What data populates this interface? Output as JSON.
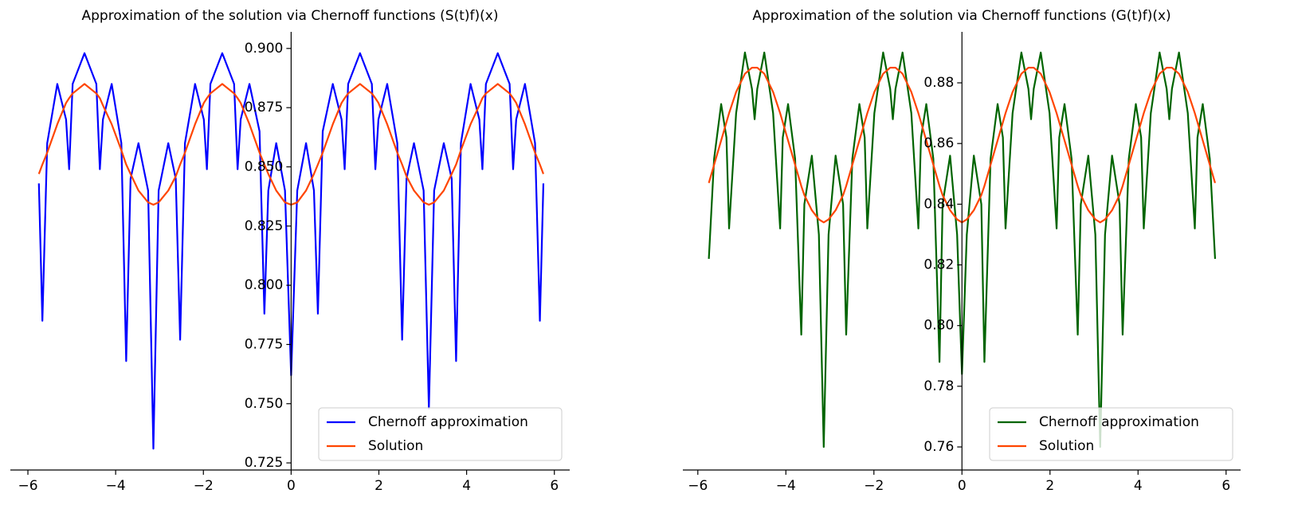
{
  "chart_data": [
    {
      "type": "line",
      "title": "Approximation of the solution via Chernoff functions (S(t)f)(x)",
      "x": [
        -5.75,
        -5.67,
        -5.56,
        -5.33,
        -5.13,
        -5.06,
        -4.98,
        -4.71,
        -4.44,
        -4.36,
        -4.29,
        -4.09,
        -3.87,
        -3.76,
        -3.66,
        -3.48,
        -3.26,
        -3.14,
        -3.02,
        -2.8,
        -2.63,
        -2.53,
        -2.42,
        -2.19,
        -1.99,
        -1.92,
        -1.84,
        -1.57,
        -1.3,
        -1.22,
        -1.15,
        -0.95,
        -0.72,
        -0.61,
        -0.52,
        -0.34,
        -0.14,
        0,
        0.14,
        0.34,
        0.52,
        0.61,
        0.72,
        0.95,
        1.15,
        1.22,
        1.3,
        1.57,
        1.84,
        1.92,
        1.99,
        2.19,
        2.42,
        2.53,
        2.63,
        2.8,
        3.02,
        3.14,
        3.26,
        3.48,
        3.66,
        3.76,
        3.87,
        4.09,
        4.29,
        4.36,
        4.44,
        4.71,
        4.98,
        5.06,
        5.13,
        5.33,
        5.56,
        5.67,
        5.75
      ],
      "series": [
        {
          "name": "Chernoff approximation",
          "color": "#0000ff",
          "values": [
            0.843,
            0.785,
            0.86,
            0.885,
            0.87,
            0.849,
            0.885,
            0.898,
            0.885,
            0.849,
            0.87,
            0.885,
            0.86,
            0.768,
            0.845,
            0.86,
            0.84,
            0.731,
            0.84,
            0.86,
            0.845,
            0.777,
            0.86,
            0.885,
            0.87,
            0.849,
            0.885,
            0.898,
            0.885,
            0.849,
            0.87,
            0.885,
            0.865,
            0.788,
            0.84,
            0.86,
            0.84,
            0.762,
            0.84,
            0.86,
            0.84,
            0.788,
            0.865,
            0.885,
            0.87,
            0.849,
            0.885,
            0.898,
            0.885,
            0.849,
            0.87,
            0.885,
            0.86,
            0.777,
            0.845,
            0.86,
            0.84,
            0.748,
            0.84,
            0.86,
            0.845,
            0.768,
            0.86,
            0.885,
            0.87,
            0.849,
            0.885,
            0.898,
            0.885,
            0.849,
            0.87,
            0.885,
            0.86,
            0.785,
            0.843
          ]
        },
        {
          "name": "Solution",
          "color": "#ff4500",
          "values": [
            0.847,
            0.851,
            0.856,
            0.868,
            0.877,
            0.879,
            0.881,
            0.885,
            0.881,
            0.879,
            0.876,
            0.868,
            0.857,
            0.851,
            0.847,
            0.84,
            0.835,
            0.834,
            0.835,
            0.84,
            0.846,
            0.851,
            0.856,
            0.868,
            0.877,
            0.879,
            0.881,
            0.885,
            0.881,
            0.879,
            0.877,
            0.868,
            0.856,
            0.851,
            0.847,
            0.84,
            0.835,
            0.834,
            0.835,
            0.84,
            0.847,
            0.851,
            0.856,
            0.868,
            0.877,
            0.879,
            0.881,
            0.885,
            0.881,
            0.879,
            0.877,
            0.868,
            0.856,
            0.851,
            0.846,
            0.84,
            0.835,
            0.834,
            0.835,
            0.84,
            0.847,
            0.851,
            0.857,
            0.868,
            0.876,
            0.879,
            0.881,
            0.885,
            0.881,
            0.879,
            0.877,
            0.868,
            0.856,
            0.851,
            0.847
          ]
        }
      ],
      "xlim": [
        -6.4,
        6.35
      ],
      "xticks": [
        {
          "value": -6,
          "label": "−6"
        },
        {
          "value": -4,
          "label": "−4"
        },
        {
          "value": -2,
          "label": "−2"
        },
        0,
        2,
        4,
        6
      ],
      "ylim": [
        0.722,
        0.907
      ],
      "yticks": [
        0.725,
        {
          "value": 0.75,
          "label": "0.750"
        },
        0.775,
        {
          "value": 0.8,
          "label": "0.800"
        },
        0.825,
        {
          "value": 0.85,
          "label": "0.850"
        },
        0.875,
        {
          "value": 0.9,
          "label": "0.900"
        }
      ],
      "legend": "lower right"
    },
    {
      "type": "line",
      "title": "Approximation of the solution via Chernoff functions (G(t)f)(x)",
      "x": [
        -5.75,
        -5.63,
        -5.47,
        -5.35,
        -5.29,
        -5.13,
        -4.93,
        -4.77,
        -4.71,
        -4.65,
        -4.49,
        -4.29,
        -4.13,
        -4.07,
        -3.95,
        -3.79,
        -3.65,
        -3.58,
        -3.41,
        -3.25,
        -3.14,
        -3.03,
        -2.87,
        -2.7,
        -2.63,
        -2.49,
        -2.33,
        -2.21,
        -2.15,
        -1.99,
        -1.79,
        -1.63,
        -1.57,
        -1.51,
        -1.35,
        -1.15,
        -0.99,
        -0.93,
        -0.81,
        -0.65,
        -0.51,
        -0.44,
        -0.27,
        -0.11,
        0,
        0.11,
        0.27,
        0.44,
        0.51,
        0.65,
        0.81,
        0.93,
        0.99,
        1.15,
        1.35,
        1.51,
        1.57,
        1.63,
        1.79,
        1.99,
        2.15,
        2.21,
        2.33,
        2.49,
        2.63,
        2.7,
        2.87,
        3.03,
        3.14,
        3.25,
        3.41,
        3.58,
        3.65,
        3.79,
        3.95,
        4.07,
        4.13,
        4.29,
        4.49,
        4.65,
        4.71,
        4.77,
        4.93,
        5.13,
        5.29,
        5.35,
        5.47,
        5.63,
        5.75
      ],
      "series": [
        {
          "name": "Chernoff approximation",
          "color": "#006400",
          "values": [
            0.822,
            0.855,
            0.873,
            0.862,
            0.832,
            0.87,
            0.89,
            0.878,
            0.868,
            0.878,
            0.89,
            0.87,
            0.832,
            0.862,
            0.873,
            0.855,
            0.797,
            0.84,
            0.856,
            0.83,
            0.76,
            0.83,
            0.856,
            0.84,
            0.797,
            0.855,
            0.873,
            0.862,
            0.832,
            0.87,
            0.89,
            0.878,
            0.868,
            0.878,
            0.89,
            0.87,
            0.832,
            0.862,
            0.873,
            0.855,
            0.788,
            0.84,
            0.856,
            0.83,
            0.784,
            0.83,
            0.856,
            0.84,
            0.788,
            0.855,
            0.873,
            0.862,
            0.832,
            0.87,
            0.89,
            0.878,
            0.868,
            0.878,
            0.89,
            0.87,
            0.832,
            0.862,
            0.873,
            0.855,
            0.797,
            0.84,
            0.856,
            0.83,
            0.76,
            0.83,
            0.856,
            0.84,
            0.797,
            0.855,
            0.873,
            0.862,
            0.832,
            0.87,
            0.89,
            0.878,
            0.868,
            0.878,
            0.89,
            0.87,
            0.832,
            0.862,
            0.873,
            0.855,
            0.822
          ]
        },
        {
          "name": "Solution",
          "color": "#ff4500",
          "values": [
            0.847,
            0.853,
            0.861,
            0.867,
            0.87,
            0.877,
            0.883,
            0.885,
            0.885,
            0.885,
            0.883,
            0.877,
            0.87,
            0.867,
            0.861,
            0.853,
            0.846,
            0.843,
            0.838,
            0.835,
            0.834,
            0.835,
            0.838,
            0.843,
            0.846,
            0.853,
            0.861,
            0.867,
            0.87,
            0.877,
            0.883,
            0.885,
            0.885,
            0.885,
            0.883,
            0.877,
            0.87,
            0.867,
            0.861,
            0.853,
            0.846,
            0.843,
            0.838,
            0.835,
            0.834,
            0.835,
            0.838,
            0.843,
            0.846,
            0.853,
            0.861,
            0.867,
            0.87,
            0.877,
            0.883,
            0.885,
            0.885,
            0.885,
            0.883,
            0.877,
            0.87,
            0.867,
            0.861,
            0.853,
            0.846,
            0.843,
            0.838,
            0.835,
            0.834,
            0.835,
            0.838,
            0.843,
            0.846,
            0.853,
            0.861,
            0.867,
            0.87,
            0.877,
            0.883,
            0.885,
            0.885,
            0.885,
            0.883,
            0.877,
            0.87,
            0.867,
            0.861,
            0.853,
            0.847
          ]
        }
      ],
      "xlim": [
        -6.34,
        6.33
      ],
      "xticks": [
        {
          "value": -6,
          "label": "−6"
        },
        {
          "value": -4,
          "label": "−4"
        },
        {
          "value": -2,
          "label": "−2"
        },
        0,
        2,
        4,
        6
      ],
      "ylim": [
        0.7524,
        0.8968
      ],
      "yticks": [
        0.76,
        0.78,
        {
          "value": 0.8,
          "label": "0.80"
        },
        0.82,
        0.84,
        0.86,
        0.88
      ],
      "legend": "lower right"
    }
  ]
}
